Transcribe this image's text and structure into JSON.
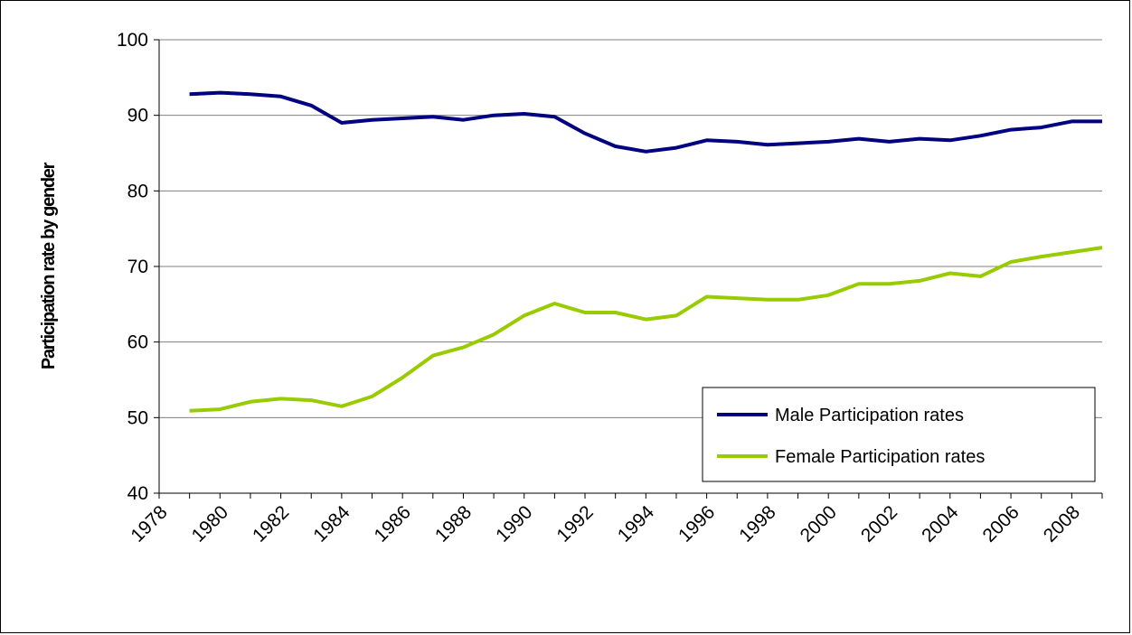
{
  "chart_data": {
    "type": "line",
    "title": "",
    "xlabel": "",
    "ylabel": "Participation rate by gender",
    "ylim": [
      40,
      100
    ],
    "y_ticks": [
      40,
      50,
      60,
      70,
      80,
      90,
      100
    ],
    "x_tick_labels": [
      "1978",
      "1980",
      "1982",
      "1984",
      "1986",
      "1988",
      "1990",
      "1992",
      "1994",
      "1996",
      "1998",
      "2000",
      "2002",
      "2004",
      "2006",
      "2008"
    ],
    "x": [
      1979,
      1980,
      1981,
      1982,
      1983,
      1984,
      1985,
      1986,
      1987,
      1988,
      1989,
      1990,
      1991,
      1992,
      1993,
      1994,
      1995,
      1996,
      1997,
      1998,
      1999,
      2000,
      2001,
      2002,
      2003,
      2004,
      2005,
      2006,
      2007,
      2008,
      2009
    ],
    "grid": true,
    "legend_position": "bottom-right",
    "series": [
      {
        "name": "Male Participation rates",
        "color": "#000080",
        "values": [
          92.8,
          93.0,
          92.8,
          92.5,
          91.3,
          89.0,
          89.4,
          89.6,
          89.8,
          89.4,
          90.0,
          90.2,
          89.8,
          87.6,
          85.9,
          85.2,
          85.7,
          86.7,
          86.5,
          86.1,
          86.3,
          86.5,
          86.9,
          86.5,
          86.9,
          86.7,
          87.3,
          88.1,
          88.4,
          89.2,
          89.2
        ]
      },
      {
        "name": "Female Participation rates",
        "color": "#99cc00",
        "values": [
          50.9,
          51.1,
          52.1,
          52.5,
          52.3,
          51.5,
          52.8,
          55.3,
          58.2,
          59.3,
          61.0,
          63.5,
          65.1,
          63.9,
          63.9,
          63.0,
          63.5,
          66.0,
          65.8,
          65.6,
          65.6,
          66.2,
          67.7,
          67.7,
          68.1,
          69.1,
          68.7,
          70.6,
          71.3,
          71.9,
          72.5
        ]
      }
    ]
  }
}
